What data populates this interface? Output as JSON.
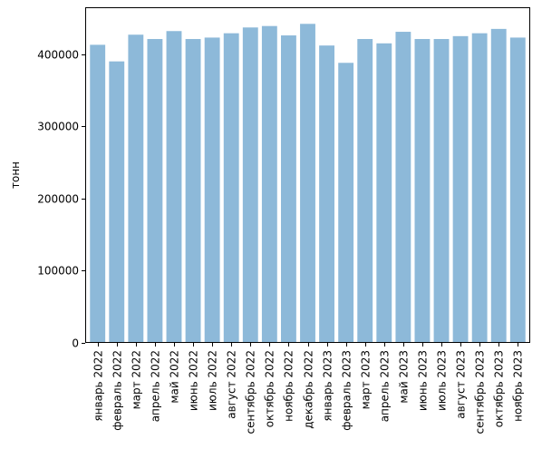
{
  "chart_data": {
    "type": "bar",
    "title": "",
    "xlabel": "",
    "ylabel": "тонн",
    "ylim": [
      0,
      465000
    ],
    "yticks": [
      0,
      100000,
      200000,
      300000,
      400000
    ],
    "grid": false,
    "bar_color": "#8db9d9",
    "categories": [
      "январь 2022",
      "февраль 2022",
      "март 2022",
      "апрель 2022",
      "май 2022",
      "июнь 2022",
      "июль 2022",
      "август 2022",
      "сентябрь 2022",
      "октябрь 2022",
      "ноябрь 2022",
      "декабрь 2022",
      "январь 2023",
      "февраль 2023",
      "март 2023",
      "апрель 2023",
      "май 2023",
      "июнь 2023",
      "июль 2023",
      "август 2023",
      "сентябрь 2023",
      "октябрь 2023",
      "ноябрь 2023"
    ],
    "values": [
      413000,
      390000,
      427000,
      421000,
      432000,
      421000,
      423000,
      429000,
      437000,
      439000,
      426000,
      442000,
      412000,
      388000,
      421000,
      415000,
      431000,
      421000,
      421000,
      425000,
      429000,
      435000,
      423000
    ]
  }
}
